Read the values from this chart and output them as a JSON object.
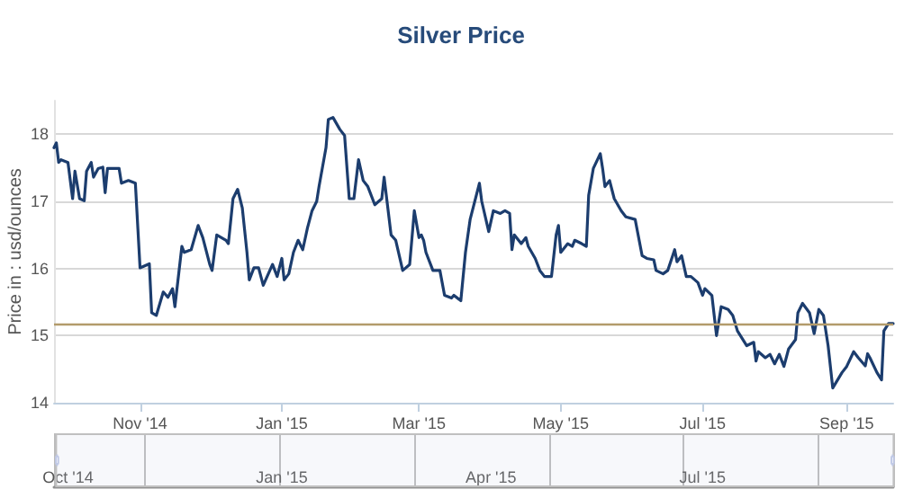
{
  "chart_data": {
    "type": "line",
    "title": "Silver Price",
    "ylabel": "Price in : usd/ounces",
    "x": [
      "2014-09-25",
      "2014-09-26",
      "2014-09-27",
      "2014-09-28",
      "2014-10-01",
      "2014-10-03",
      "2014-10-04",
      "2014-10-06",
      "2014-10-08",
      "2014-10-09",
      "2014-10-11",
      "2014-10-12",
      "2014-10-14",
      "2014-10-16",
      "2014-10-17",
      "2014-10-18",
      "2014-10-23",
      "2014-10-24",
      "2014-10-27",
      "2014-10-30",
      "2014-11-01",
      "2014-11-05",
      "2014-11-06",
      "2014-11-08",
      "2014-11-11",
      "2014-11-13",
      "2014-11-15",
      "2014-11-16",
      "2014-11-19",
      "2014-11-20",
      "2014-11-23",
      "2014-11-26",
      "2014-11-28",
      "2014-12-01",
      "2014-12-02",
      "2014-12-04",
      "2014-12-08",
      "2014-12-09",
      "2014-12-11",
      "2014-12-13",
      "2014-12-15",
      "2014-12-17",
      "2014-12-18",
      "2014-12-20",
      "2014-12-22",
      "2014-12-24",
      "2014-12-28",
      "2014-12-30",
      "2015-01-01",
      "2015-01-02",
      "2015-01-04",
      "2015-01-06",
      "2015-01-08",
      "2015-01-10",
      "2015-01-12",
      "2015-01-14",
      "2015-01-16",
      "2015-01-17",
      "2015-01-20",
      "2015-01-21",
      "2015-01-23",
      "2015-01-26",
      "2015-01-28",
      "2015-01-30",
      "2015-02-01",
      "2015-02-03",
      "2015-02-05",
      "2015-02-07",
      "2015-02-10",
      "2015-02-13",
      "2015-02-14",
      "2015-02-17",
      "2015-02-19",
      "2015-02-22",
      "2015-02-25",
      "2015-02-27",
      "2015-03-01",
      "2015-03-02",
      "2015-03-03",
      "2015-03-04",
      "2015-03-07",
      "2015-03-10",
      "2015-03-12",
      "2015-03-15",
      "2015-03-16",
      "2015-03-19",
      "2015-03-21",
      "2015-03-23",
      "2015-03-27",
      "2015-03-28",
      "2015-03-31",
      "2015-04-02",
      "2015-04-05",
      "2015-04-07",
      "2015-04-09",
      "2015-04-10",
      "2015-04-11",
      "2015-04-14",
      "2015-04-16",
      "2015-04-17",
      "2015-04-20",
      "2015-04-22",
      "2015-04-24",
      "2015-04-27",
      "2015-04-29",
      "2015-04-30",
      "2015-05-01",
      "2015-05-04",
      "2015-05-06",
      "2015-05-07",
      "2015-05-10",
      "2015-05-12",
      "2015-05-13",
      "2015-05-15",
      "2015-05-18",
      "2015-05-19",
      "2015-05-20",
      "2015-05-22",
      "2015-05-24",
      "2015-05-27",
      "2015-05-29",
      "2015-06-02",
      "2015-06-05",
      "2015-06-07",
      "2015-06-10",
      "2015-06-11",
      "2015-06-14",
      "2015-06-16",
      "2015-06-19",
      "2015-06-20",
      "2015-06-22",
      "2015-06-24",
      "2015-06-26",
      "2015-06-29",
      "2015-07-01",
      "2015-07-02",
      "2015-07-05",
      "2015-07-07",
      "2015-07-09",
      "2015-07-12",
      "2015-07-14",
      "2015-07-16",
      "2015-07-20",
      "2015-07-23",
      "2015-07-24",
      "2015-07-25",
      "2015-07-28",
      "2015-07-30",
      "2015-08-01",
      "2015-08-03",
      "2015-08-05",
      "2015-08-07",
      "2015-08-10",
      "2015-08-11",
      "2015-08-13",
      "2015-08-16",
      "2015-08-18",
      "2015-08-20",
      "2015-08-22",
      "2015-08-24",
      "2015-08-26",
      "2015-08-30",
      "2015-09-01",
      "2015-09-04",
      "2015-09-06",
      "2015-09-09",
      "2015-09-10",
      "2015-09-11",
      "2015-09-14",
      "2015-09-16",
      "2015-09-17",
      "2015-09-19",
      "2015-09-21"
    ],
    "series": [
      {
        "color": "#1c3d6e",
        "values": [
          17.8,
          17.87,
          17.58,
          17.62,
          17.58,
          17.04,
          17.45,
          17.04,
          17.01,
          17.45,
          17.58,
          17.36,
          17.49,
          17.51,
          17.13,
          17.49,
          17.49,
          17.27,
          17.31,
          17.27,
          16.01,
          16.07,
          15.34,
          15.3,
          15.65,
          15.57,
          15.7,
          15.43,
          16.33,
          16.24,
          16.28,
          16.64,
          16.46,
          16.06,
          15.97,
          16.5,
          16.42,
          16.37,
          17.04,
          17.18,
          16.9,
          16.24,
          15.83,
          16.01,
          16.01,
          15.75,
          16.06,
          15.88,
          16.15,
          15.83,
          15.92,
          16.24,
          16.42,
          16.28,
          16.6,
          16.86,
          17.0,
          17.22,
          17.8,
          18.22,
          18.25,
          18.07,
          17.98,
          17.04,
          17.04,
          17.62,
          17.31,
          17.22,
          16.95,
          17.04,
          17.36,
          16.5,
          16.42,
          15.97,
          16.06,
          16.86,
          16.46,
          16.5,
          16.42,
          16.24,
          15.97,
          15.97,
          15.6,
          15.56,
          15.6,
          15.52,
          16.24,
          16.73,
          17.27,
          17.0,
          16.55,
          16.86,
          16.82,
          16.86,
          16.82,
          16.28,
          16.5,
          16.37,
          16.46,
          16.33,
          16.15,
          15.97,
          15.88,
          15.88,
          16.5,
          16.64,
          16.24,
          16.37,
          16.33,
          16.42,
          16.37,
          16.33,
          17.09,
          17.49,
          17.71,
          17.49,
          17.22,
          17.31,
          17.04,
          16.86,
          16.77,
          16.73,
          16.19,
          16.15,
          16.13,
          15.97,
          15.92,
          15.97,
          16.28,
          16.1,
          16.19,
          15.88,
          15.88,
          15.79,
          15.6,
          15.7,
          15.6,
          15.0,
          15.43,
          15.39,
          15.3,
          15.07,
          14.85,
          14.9,
          14.62,
          14.76,
          14.67,
          14.72,
          14.58,
          14.72,
          14.54,
          14.8,
          14.94,
          15.34,
          15.48,
          15.34,
          15.03,
          15.39,
          15.3,
          14.85,
          14.22,
          14.45,
          14.54,
          14.76,
          14.67,
          14.55,
          14.73,
          14.67,
          14.45,
          14.34,
          15.07,
          15.18,
          15.18
        ]
      }
    ],
    "xlim": [
      "2014-09-25",
      "2015-09-21"
    ],
    "xticks": [
      {
        "value": "2014-11-01",
        "label": "Nov '14"
      },
      {
        "value": "2015-01-01",
        "label": "Jan '15"
      },
      {
        "value": "2015-03-01",
        "label": "Mar '15"
      },
      {
        "value": "2015-05-01",
        "label": "May '15"
      },
      {
        "value": "2015-07-01",
        "label": "Jul '15"
      },
      {
        "value": "2015-09-01",
        "label": "Sep '15"
      }
    ],
    "x2lim": [
      "2014-09-25",
      "2015-09-21"
    ],
    "x2ticks": [
      {
        "value": "2014-10-01",
        "label": "Oct '14"
      },
      {
        "value": "2015-01-01",
        "label": "Jan '15"
      },
      {
        "value": "2015-04-01",
        "label": "Apr '15"
      },
      {
        "value": "2015-07-01",
        "label": "Jul '15"
      }
    ],
    "ylim": [
      14,
      18.5
    ],
    "yticks": [
      14,
      15,
      16,
      17,
      18
    ],
    "ref_lines": [
      {
        "axis": "y",
        "value": 15.18,
        "color": "#b39b6b"
      }
    ],
    "grid": "y",
    "marker": "none",
    "line_style": "solid"
  }
}
